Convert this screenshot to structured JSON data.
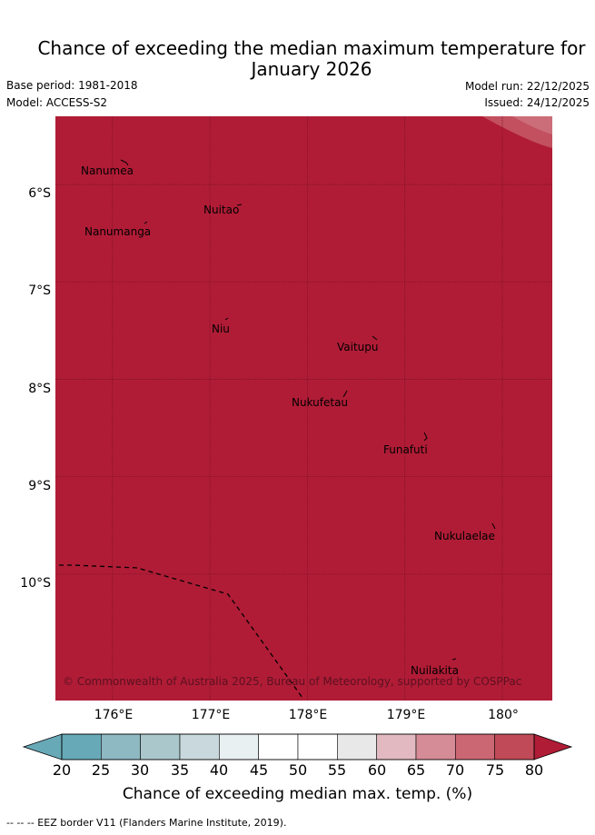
{
  "title": "Chance of exceeding the median maximum temperature for\nJanuary 2026",
  "base_period": "Base period: 1981-2018",
  "model": "Model: ACCESS-S2",
  "model_run": "Model run: 22/12/2025",
  "issued": "Issued: 24/12/2025",
  "map": {
    "latitudes": [
      {
        "label": "6°S",
        "value": -6
      },
      {
        "label": "7°S",
        "value": -7
      },
      {
        "label": "8°S",
        "value": -8
      },
      {
        "label": "9°S",
        "value": -9
      },
      {
        "label": "10°S",
        "value": -10
      }
    ],
    "longitudes": [
      {
        "label": "176°E",
        "value": 176
      },
      {
        "label": "177°E",
        "value": 177
      },
      {
        "label": "178°E",
        "value": 178
      },
      {
        "label": "179°E",
        "value": 179
      },
      {
        "label": "180°",
        "value": 180
      }
    ],
    "islands": [
      {
        "name": "Nanumea"
      },
      {
        "name": "Nuitao"
      },
      {
        "name": "Nanumanga"
      },
      {
        "name": "Niu"
      },
      {
        "name": "Vaitupu"
      },
      {
        "name": "Nukufetau"
      },
      {
        "name": "Funafuti"
      },
      {
        "name": "Nukulaelae"
      },
      {
        "name": "Nuilakita"
      }
    ],
    "dominant_category": "80+",
    "colors": {
      "dominant": "#b01c36",
      "corner_band_1": "#c2505f",
      "corner_band_2": "#cc6e79",
      "grid": "#7a1124"
    },
    "copyright": "© Commonwealth of Australia 2025, Bureau of Meteorology, supported by COSPPac"
  },
  "colorbar": {
    "ticks": [
      "20",
      "25",
      "30",
      "35",
      "40",
      "45",
      "50",
      "55",
      "60",
      "65",
      "70",
      "75",
      "80"
    ],
    "colors": [
      "#67a9b7",
      "#8eb9c3",
      "#aac7cc",
      "#c8d8dc",
      "#e9f0f2",
      "#ffffff",
      "#ffffff",
      "#e8e8e8",
      "#e2b9c1",
      "#d68c96",
      "#cb6772",
      "#c04a58",
      "#b01c36"
    ],
    "label": "Chance of exceeding median max. temp. (%)"
  },
  "eez_note": "-- -- -- EEZ border V11 (Flanders Marine Institute, 2019)."
}
